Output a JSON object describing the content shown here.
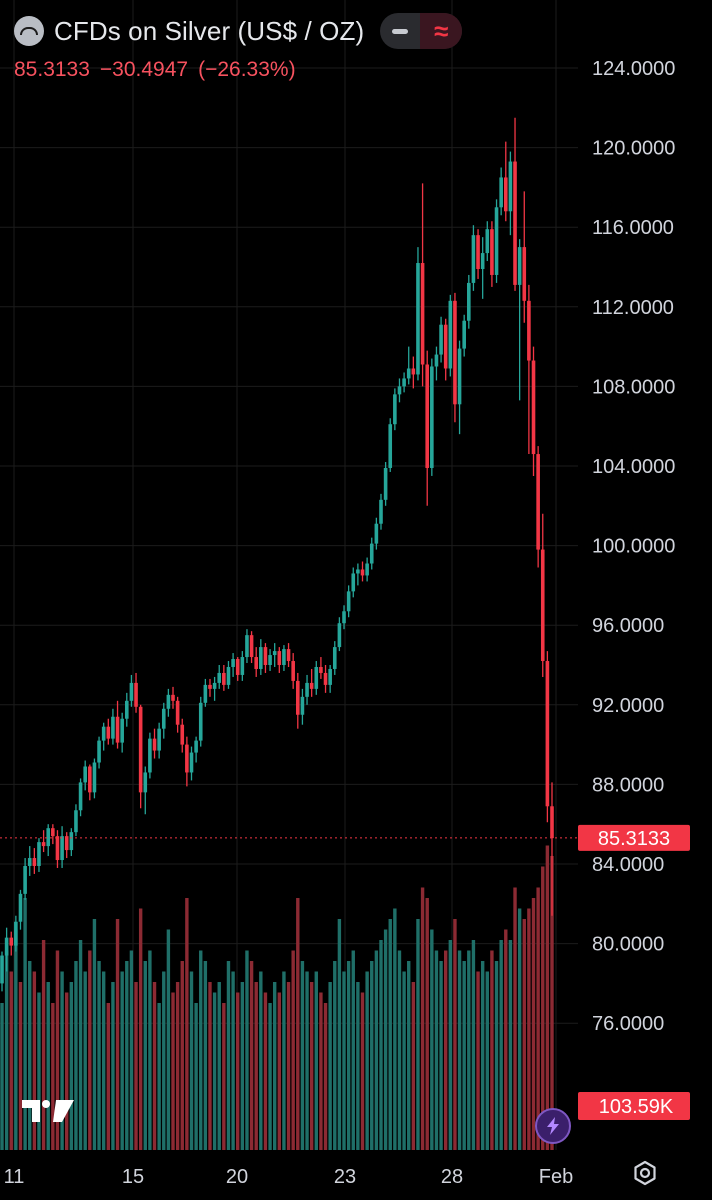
{
  "header": {
    "title": "CFDs on Silver (US$ / OZ)",
    "last_price": "85.3133",
    "change": "−30.4947",
    "change_pct": "(−26.33%)"
  },
  "colors": {
    "up": "#26a69a",
    "down": "#f23645",
    "price_label_bg": "#f23645",
    "background": "#000000",
    "grid": "#1c1c1c"
  },
  "price_label": "85.3133",
  "volume_label": "103.59K",
  "chart_data": {
    "type": "candlestick",
    "y_ticks": [
      "124.0000",
      "120.0000",
      "116.0000",
      "112.0000",
      "108.0000",
      "104.0000",
      "100.0000",
      "96.0000",
      "92.0000",
      "88.0000",
      "84.0000",
      "80.0000",
      "76.0000"
    ],
    "x_ticks": [
      "11",
      "15",
      "20",
      "23",
      "28",
      "Feb"
    ],
    "ylim": [
      73,
      126
    ],
    "last_price": 85.3133,
    "grid": true,
    "candles": [
      [
        78.0,
        79.6,
        77.6,
        79.4
      ],
      [
        79.4,
        80.8,
        78.6,
        80.3
      ],
      [
        80.3,
        80.6,
        79.4,
        79.9
      ],
      [
        79.9,
        81.4,
        79.6,
        81.1
      ],
      [
        81.1,
        82.7,
        80.7,
        82.5
      ],
      [
        82.5,
        84.3,
        82.2,
        83.9
      ],
      [
        83.9,
        84.9,
        83.4,
        84.3
      ],
      [
        84.3,
        84.8,
        83.5,
        83.9
      ],
      [
        83.9,
        85.3,
        83.6,
        85.1
      ],
      [
        85.1,
        85.7,
        84.6,
        84.9
      ],
      [
        84.9,
        86.0,
        84.4,
        85.8
      ],
      [
        85.8,
        86.0,
        85.0,
        85.4
      ],
      [
        85.4,
        85.7,
        83.8,
        84.2
      ],
      [
        84.2,
        85.9,
        83.8,
        85.4
      ],
      [
        85.4,
        85.6,
        84.3,
        84.7
      ],
      [
        84.7,
        85.8,
        84.4,
        85.6
      ],
      [
        85.6,
        87.0,
        85.4,
        86.7
      ],
      [
        86.7,
        88.3,
        86.4,
        88.1
      ],
      [
        88.1,
        89.2,
        87.7,
        88.9
      ],
      [
        88.9,
        89.0,
        87.2,
        87.6
      ],
      [
        87.6,
        89.3,
        87.3,
        89.1
      ],
      [
        89.1,
        90.4,
        88.8,
        90.2
      ],
      [
        90.2,
        91.1,
        89.7,
        90.9
      ],
      [
        90.9,
        91.3,
        90.0,
        90.3
      ],
      [
        90.3,
        91.8,
        90.0,
        91.4
      ],
      [
        91.4,
        92.2,
        89.8,
        90.1
      ],
      [
        90.1,
        91.6,
        89.6,
        91.3
      ],
      [
        91.3,
        92.6,
        90.9,
        92.2
      ],
      [
        92.2,
        93.5,
        91.9,
        93.1
      ],
      [
        93.1,
        93.6,
        91.6,
        91.9
      ],
      [
        91.9,
        92.0,
        86.8,
        87.6
      ],
      [
        87.6,
        88.9,
        86.5,
        88.6
      ],
      [
        88.6,
        90.6,
        88.3,
        90.3
      ],
      [
        90.3,
        90.8,
        89.3,
        89.7
      ],
      [
        89.7,
        91.1,
        89.3,
        90.8
      ],
      [
        90.8,
        92.1,
        90.3,
        91.8
      ],
      [
        91.8,
        92.8,
        91.4,
        92.5
      ],
      [
        92.5,
        92.9,
        91.8,
        92.2
      ],
      [
        92.2,
        92.4,
        90.6,
        91.0
      ],
      [
        91.0,
        91.3,
        89.6,
        90.0
      ],
      [
        90.0,
        90.4,
        87.9,
        88.6
      ],
      [
        88.6,
        89.9,
        88.2,
        89.6
      ],
      [
        89.6,
        90.4,
        89.1,
        90.2
      ],
      [
        90.2,
        92.4,
        89.9,
        92.1
      ],
      [
        92.1,
        93.3,
        91.9,
        93.0
      ],
      [
        93.0,
        93.3,
        92.4,
        92.8
      ],
      [
        92.8,
        93.4,
        92.2,
        93.1
      ],
      [
        93.1,
        94.0,
        92.8,
        93.6
      ],
      [
        93.6,
        94.0,
        92.7,
        93.0
      ],
      [
        93.0,
        94.2,
        92.8,
        93.9
      ],
      [
        93.9,
        94.6,
        93.4,
        94.3
      ],
      [
        94.3,
        94.4,
        93.2,
        93.5
      ],
      [
        93.5,
        94.7,
        93.2,
        94.4
      ],
      [
        94.4,
        95.8,
        94.1,
        95.5
      ],
      [
        95.5,
        95.7,
        94.1,
        94.4
      ],
      [
        94.4,
        94.9,
        93.4,
        93.8
      ],
      [
        93.8,
        95.3,
        93.5,
        94.9
      ],
      [
        94.9,
        95.1,
        93.6,
        94.0
      ],
      [
        94.0,
        94.8,
        93.7,
        94.5
      ],
      [
        94.5,
        95.1,
        93.9,
        94.7
      ],
      [
        94.7,
        94.9,
        93.6,
        94.0
      ],
      [
        94.0,
        95.0,
        93.7,
        94.8
      ],
      [
        94.8,
        95.1,
        93.9,
        94.2
      ],
      [
        94.2,
        94.6,
        92.8,
        93.2
      ],
      [
        93.2,
        93.6,
        90.8,
        91.5
      ],
      [
        91.5,
        92.8,
        91.0,
        92.4
      ],
      [
        92.4,
        93.5,
        92.0,
        93.1
      ],
      [
        93.1,
        93.8,
        92.4,
        92.8
      ],
      [
        92.8,
        94.2,
        92.5,
        93.9
      ],
      [
        93.9,
        94.4,
        93.3,
        93.6
      ],
      [
        93.6,
        94.0,
        92.6,
        93.0
      ],
      [
        93.0,
        94.0,
        92.6,
        93.8
      ],
      [
        93.8,
        95.2,
        93.5,
        94.9
      ],
      [
        94.9,
        96.4,
        94.7,
        96.1
      ],
      [
        96.1,
        97.0,
        95.8,
        96.7
      ],
      [
        96.7,
        98.0,
        96.4,
        97.7
      ],
      [
        97.7,
        98.9,
        97.4,
        98.6
      ],
      [
        98.6,
        99.1,
        98.0,
        98.8
      ],
      [
        98.8,
        99.2,
        98.2,
        98.5
      ],
      [
        98.5,
        99.4,
        98.2,
        99.1
      ],
      [
        99.1,
        100.4,
        98.8,
        100.1
      ],
      [
        100.1,
        101.4,
        99.8,
        101.1
      ],
      [
        101.1,
        102.6,
        100.8,
        102.3
      ],
      [
        102.3,
        104.2,
        102.0,
        103.9
      ],
      [
        103.9,
        106.4,
        103.7,
        106.1
      ],
      [
        106.1,
        107.9,
        105.8,
        107.6
      ],
      [
        107.6,
        108.4,
        107.2,
        108.0
      ],
      [
        108.0,
        108.7,
        107.7,
        108.4
      ],
      [
        108.4,
        110.0,
        108.1,
        108.9
      ],
      [
        108.9,
        109.5,
        107.9,
        108.6
      ],
      [
        108.6,
        115.0,
        108.3,
        114.2
      ],
      [
        114.2,
        118.2,
        108.0,
        109.1
      ],
      [
        109.1,
        109.8,
        102.0,
        103.9
      ],
      [
        103.9,
        109.4,
        103.5,
        109.0
      ],
      [
        109.0,
        110.0,
        108.3,
        109.6
      ],
      [
        109.6,
        111.5,
        109.2,
        111.1
      ],
      [
        111.1,
        111.4,
        108.3,
        108.9
      ],
      [
        108.9,
        112.6,
        108.5,
        112.3
      ],
      [
        112.3,
        112.7,
        106.2,
        107.1
      ],
      [
        107.1,
        110.3,
        105.6,
        109.9
      ],
      [
        109.9,
        111.6,
        109.5,
        111.3
      ],
      [
        111.3,
        113.6,
        110.9,
        113.2
      ],
      [
        113.2,
        116.1,
        112.8,
        115.6
      ],
      [
        115.6,
        115.9,
        113.4,
        113.9
      ],
      [
        113.9,
        115.5,
        112.4,
        114.7
      ],
      [
        114.7,
        116.3,
        114.3,
        115.9
      ],
      [
        115.9,
        116.3,
        113.0,
        113.6
      ],
      [
        113.6,
        117.4,
        113.2,
        117.0
      ],
      [
        117.0,
        119.0,
        116.6,
        118.5
      ],
      [
        118.5,
        120.3,
        116.3,
        116.8
      ],
      [
        116.8,
        119.8,
        115.6,
        119.3
      ],
      [
        119.3,
        121.5,
        112.8,
        113.1
      ],
      [
        113.1,
        115.4,
        107.3,
        115.0
      ],
      [
        115.0,
        117.8,
        111.2,
        112.3
      ],
      [
        112.3,
        113.1,
        104.6,
        109.3
      ],
      [
        109.3,
        110.0,
        103.5,
        104.6
      ],
      [
        104.6,
        105.0,
        98.9,
        99.8
      ],
      [
        99.8,
        101.6,
        93.4,
        94.2
      ],
      [
        94.2,
        94.7,
        86.1,
        86.9
      ],
      [
        86.9,
        88.1,
        81.4,
        85.3
      ]
    ],
    "volume": [
      [
        70,
        "up"
      ],
      [
        95,
        "up"
      ],
      [
        85,
        "down"
      ],
      [
        105,
        "up"
      ],
      [
        80,
        "down"
      ],
      [
        120,
        "up"
      ],
      [
        90,
        "up"
      ],
      [
        85,
        "down"
      ],
      [
        75,
        "up"
      ],
      [
        100,
        "down"
      ],
      [
        80,
        "up"
      ],
      [
        70,
        "down"
      ],
      [
        95,
        "down"
      ],
      [
        85,
        "up"
      ],
      [
        75,
        "down"
      ],
      [
        80,
        "up"
      ],
      [
        90,
        "up"
      ],
      [
        100,
        "up"
      ],
      [
        85,
        "up"
      ],
      [
        95,
        "down"
      ],
      [
        110,
        "up"
      ],
      [
        90,
        "up"
      ],
      [
        85,
        "up"
      ],
      [
        70,
        "down"
      ],
      [
        80,
        "up"
      ],
      [
        110,
        "down"
      ],
      [
        85,
        "up"
      ],
      [
        90,
        "up"
      ],
      [
        95,
        "up"
      ],
      [
        80,
        "down"
      ],
      [
        115,
        "down"
      ],
      [
        90,
        "up"
      ],
      [
        95,
        "up"
      ],
      [
        80,
        "down"
      ],
      [
        70,
        "up"
      ],
      [
        85,
        "up"
      ],
      [
        105,
        "up"
      ],
      [
        75,
        "down"
      ],
      [
        80,
        "down"
      ],
      [
        90,
        "down"
      ],
      [
        120,
        "down"
      ],
      [
        85,
        "up"
      ],
      [
        70,
        "up"
      ],
      [
        95,
        "up"
      ],
      [
        90,
        "up"
      ],
      [
        80,
        "down"
      ],
      [
        75,
        "up"
      ],
      [
        80,
        "up"
      ],
      [
        70,
        "down"
      ],
      [
        90,
        "up"
      ],
      [
        85,
        "up"
      ],
      [
        75,
        "down"
      ],
      [
        80,
        "up"
      ],
      [
        95,
        "up"
      ],
      [
        90,
        "down"
      ],
      [
        80,
        "down"
      ],
      [
        85,
        "up"
      ],
      [
        75,
        "down"
      ],
      [
        70,
        "up"
      ],
      [
        80,
        "up"
      ],
      [
        75,
        "down"
      ],
      [
        85,
        "up"
      ],
      [
        80,
        "down"
      ],
      [
        95,
        "down"
      ],
      [
        120,
        "down"
      ],
      [
        90,
        "up"
      ],
      [
        85,
        "up"
      ],
      [
        80,
        "down"
      ],
      [
        85,
        "up"
      ],
      [
        75,
        "down"
      ],
      [
        70,
        "down"
      ],
      [
        80,
        "up"
      ],
      [
        90,
        "up"
      ],
      [
        110,
        "up"
      ],
      [
        85,
        "up"
      ],
      [
        90,
        "up"
      ],
      [
        95,
        "up"
      ],
      [
        80,
        "up"
      ],
      [
        75,
        "down"
      ],
      [
        85,
        "up"
      ],
      [
        90,
        "up"
      ],
      [
        95,
        "up"
      ],
      [
        100,
        "up"
      ],
      [
        105,
        "up"
      ],
      [
        110,
        "up"
      ],
      [
        115,
        "up"
      ],
      [
        95,
        "up"
      ],
      [
        85,
        "up"
      ],
      [
        90,
        "up"
      ],
      [
        80,
        "down"
      ],
      [
        110,
        "up"
      ],
      [
        125,
        "down"
      ],
      [
        120,
        "down"
      ],
      [
        105,
        "up"
      ],
      [
        95,
        "up"
      ],
      [
        90,
        "up"
      ],
      [
        95,
        "down"
      ],
      [
        100,
        "up"
      ],
      [
        110,
        "down"
      ],
      [
        95,
        "up"
      ],
      [
        90,
        "up"
      ],
      [
        95,
        "up"
      ],
      [
        100,
        "up"
      ],
      [
        85,
        "down"
      ],
      [
        90,
        "up"
      ],
      [
        85,
        "up"
      ],
      [
        95,
        "down"
      ],
      [
        90,
        "up"
      ],
      [
        100,
        "up"
      ],
      [
        105,
        "down"
      ],
      [
        100,
        "up"
      ],
      [
        125,
        "down"
      ],
      [
        115,
        "up"
      ],
      [
        110,
        "down"
      ],
      [
        115,
        "down"
      ],
      [
        120,
        "down"
      ],
      [
        125,
        "down"
      ],
      [
        135,
        "down"
      ],
      [
        145,
        "down"
      ],
      [
        140,
        "down"
      ]
    ]
  }
}
